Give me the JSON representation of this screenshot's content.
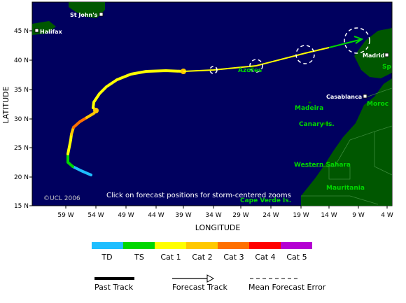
{
  "map": {
    "x_ticks": [
      "59 W",
      "54 W",
      "49 W",
      "44 W",
      "39 W",
      "34 W",
      "29 W",
      "24 W",
      "19 W",
      "14 W",
      "9 W",
      "4 W"
    ],
    "y_ticks": [
      "45 N",
      "40 N",
      "35 N",
      "30 N",
      "25 N",
      "20 N",
      "15 N"
    ],
    "x_axis_label": "LONGITUDE",
    "y_axis_label": "LATITUDE",
    "copyright": "©UCL 2006",
    "instruction": "Click on forecast positions for storm-centered zooms",
    "cities": {
      "st_johns": "St John's",
      "halifax": "Halifax",
      "madrid": "Madrid",
      "casablanca": "Casablanca"
    },
    "regions": {
      "azores": "Azores",
      "madeira": "Madeira",
      "canary": "Canary Is.",
      "western_sahara": "Western Sahara",
      "mauritania": "Mauritania",
      "cape_verde": "Cape Verde Is.",
      "morocco": "Moroc",
      "spain": "Sp"
    },
    "colors": {
      "ocean": "#00005f",
      "land": "#005700",
      "td": "#1ebeff",
      "ts": "#00d700",
      "cat1": "#ffff00",
      "cat2": "#ffc800",
      "cat3": "#ff7000",
      "cat4": "#ff0000",
      "cat5": "#b400d2"
    }
  },
  "legend": {
    "categories": [
      "TD",
      "TS",
      "Cat 1",
      "Cat 2",
      "Cat 3",
      "Cat 4",
      "Cat 5"
    ],
    "past_track": "Past Track",
    "forecast_track": "Forecast Track",
    "mean_error": "Mean Forecast Error"
  }
}
